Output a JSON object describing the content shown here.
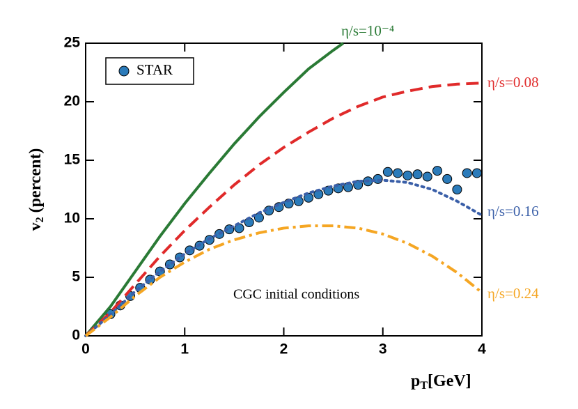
{
  "chart_data": {
    "type": "line",
    "xlabel": [
      "p",
      "T",
      "[GeV]"
    ],
    "ylabel": [
      "v",
      "2",
      " (percent)"
    ],
    "annotation": "CGC initial conditions",
    "xlim": [
      0,
      4
    ],
    "ylim": [
      0,
      25
    ],
    "xticks": [
      0,
      1,
      2,
      3,
      4
    ],
    "yticks": [
      0,
      5,
      10,
      15,
      20,
      25
    ],
    "legend": "upper left",
    "series": [
      {
        "name": "STAR",
        "color": "#2b7bba",
        "style": "markers",
        "x": [
          0.25,
          0.35,
          0.45,
          0.55,
          0.65,
          0.75,
          0.85,
          0.95,
          1.05,
          1.15,
          1.25,
          1.35,
          1.45,
          1.55,
          1.65,
          1.75,
          1.85,
          1.95,
          2.05,
          2.15,
          2.25,
          2.35,
          2.45,
          2.55,
          2.65,
          2.75,
          2.85,
          2.95,
          3.05,
          3.15,
          3.25,
          3.35,
          3.45,
          3.55,
          3.65,
          3.75,
          3.85,
          3.95
        ],
        "values": [
          1.85,
          2.6,
          3.4,
          4.1,
          4.8,
          5.5,
          6.1,
          6.7,
          7.3,
          7.7,
          8.2,
          8.7,
          9.1,
          9.2,
          9.7,
          10.1,
          10.7,
          11.0,
          11.3,
          11.5,
          11.8,
          12.1,
          12.4,
          12.6,
          12.7,
          12.9,
          13.2,
          13.4,
          14.0,
          13.9,
          13.7,
          13.8,
          13.6,
          14.1,
          13.4,
          12.5,
          13.9,
          13.9
        ]
      },
      {
        "name": "η/s=10⁻⁴",
        "color": "#2a7a35",
        "style": "solid",
        "x": [
          0,
          0.25,
          0.5,
          0.75,
          1,
          1.25,
          1.5,
          1.75,
          2,
          2.25,
          2.5,
          2.6
        ],
        "values": [
          0,
          2.5,
          5.5,
          8.5,
          11.3,
          13.9,
          16.4,
          18.7,
          20.8,
          22.8,
          24.4,
          25
        ]
      },
      {
        "name": "η/s=0.08",
        "color": "#e02a2a",
        "style": "dashed",
        "x": [
          0,
          0.25,
          0.5,
          0.75,
          1,
          1.25,
          1.5,
          1.75,
          2,
          2.25,
          2.5,
          2.75,
          3,
          3.25,
          3.5,
          3.75,
          4
        ],
        "values": [
          0,
          2,
          4.4,
          6.8,
          9,
          11,
          12.9,
          14.6,
          16.1,
          17.4,
          18.6,
          19.6,
          20.4,
          20.9,
          21.3,
          21.5,
          21.6
        ]
      },
      {
        "name": "η/s=0.16",
        "color": "#3a5fa8",
        "style": "dotted",
        "x": [
          0,
          0.25,
          0.5,
          0.75,
          1,
          1.25,
          1.5,
          1.75,
          2,
          2.25,
          2.5,
          2.75,
          3,
          3.25,
          3.5,
          3.75,
          4
        ],
        "values": [
          0,
          1.8,
          3.8,
          5.5,
          7,
          8.3,
          9.4,
          10.5,
          11.4,
          12.2,
          12.8,
          13.2,
          13.3,
          13.1,
          12.5,
          11.5,
          10.3
        ]
      },
      {
        "name": "η/s=0.24",
        "color": "#f5a623",
        "style": "dashdot",
        "x": [
          0,
          0.25,
          0.5,
          0.75,
          1,
          1.25,
          1.5,
          1.75,
          2,
          2.25,
          2.5,
          2.75,
          3,
          3.25,
          3.5,
          3.75,
          4
        ],
        "values": [
          0,
          1.6,
          3.4,
          5,
          6.3,
          7.4,
          8.2,
          8.8,
          9.2,
          9.4,
          9.4,
          9.2,
          8.7,
          7.9,
          6.8,
          5.4,
          3.7
        ]
      }
    ]
  }
}
